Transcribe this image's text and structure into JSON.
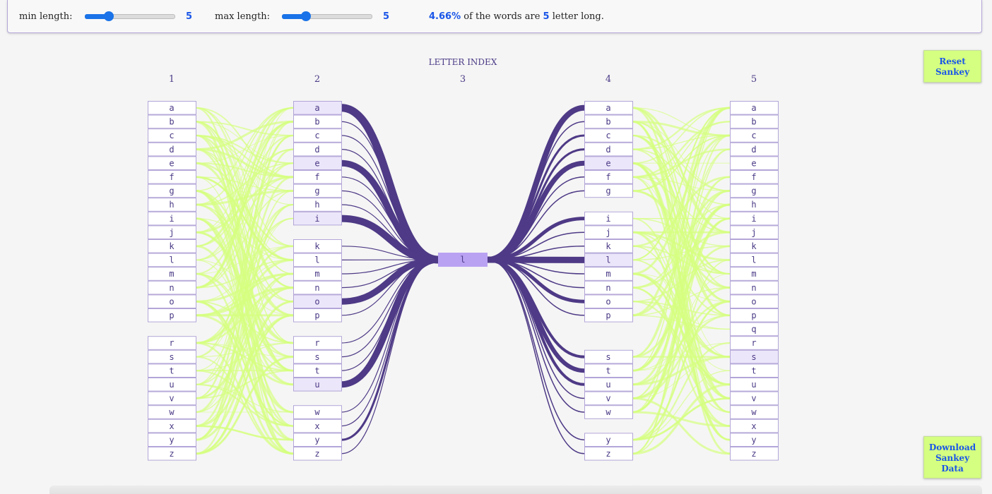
{
  "controls": {
    "min_label": "min length:",
    "min_value": "5",
    "min_slider_fraction": 0.27,
    "max_label": "max length:",
    "max_value": "5",
    "max_slider_fraction": 0.27,
    "summary_percent": "4.66%",
    "summary_mid": "of the words are",
    "summary_length": "5",
    "summary_end": "letter long."
  },
  "buttons": {
    "reset_line1": "Reset",
    "reset_line2": "Sankey",
    "download_line1": "Download",
    "download_line2": "Sankey",
    "download_line3": "Data"
  },
  "sankey": {
    "axis_title": "LETTER INDEX",
    "columns": [
      {
        "index": "1",
        "letters": [
          "a",
          "b",
          "c",
          "d",
          "e",
          "f",
          "g",
          "h",
          "i",
          "j",
          "k",
          "l",
          "m",
          "n",
          "o",
          "p",
          "",
          "r",
          "s",
          "t",
          "u",
          "v",
          "w",
          "x",
          "y",
          "z"
        ],
        "highlight": []
      },
      {
        "index": "2",
        "letters": [
          "a",
          "b",
          "c",
          "d",
          "e",
          "f",
          "g",
          "h",
          "i",
          "",
          "k",
          "l",
          "m",
          "n",
          "o",
          "p",
          "",
          "r",
          "s",
          "t",
          "u",
          "",
          "w",
          "x",
          "y",
          "z"
        ],
        "highlight": [
          "a",
          "e",
          "i",
          "o",
          "u"
        ]
      },
      {
        "index": "3",
        "letters": [
          "l"
        ],
        "highlight": [
          "l"
        ]
      },
      {
        "index": "4",
        "letters": [
          "a",
          "b",
          "c",
          "d",
          "e",
          "f",
          "g",
          "",
          "i",
          "j",
          "k",
          "l",
          "m",
          "n",
          "o",
          "p",
          "",
          "",
          "s",
          "t",
          "u",
          "v",
          "w",
          "",
          "y",
          "z"
        ],
        "highlight": [
          "e",
          "l"
        ]
      },
      {
        "index": "5",
        "letters": [
          "a",
          "b",
          "c",
          "d",
          "e",
          "f",
          "g",
          "h",
          "i",
          "j",
          "k",
          "l",
          "m",
          "n",
          "o",
          "p",
          "q",
          "r",
          "s",
          "t",
          "u",
          "v",
          "w",
          "x",
          "y",
          "z"
        ],
        "highlight": [
          "s"
        ]
      }
    ],
    "colors": {
      "node_border": "#b3a6d8",
      "node_fill": "#ffffff",
      "node_highlight": "#ece6fa",
      "center_node": "#b9a2f2",
      "text": "#4b3a86",
      "dark_flow": "#4e3a86",
      "light_flow": "#d5ff80"
    }
  }
}
